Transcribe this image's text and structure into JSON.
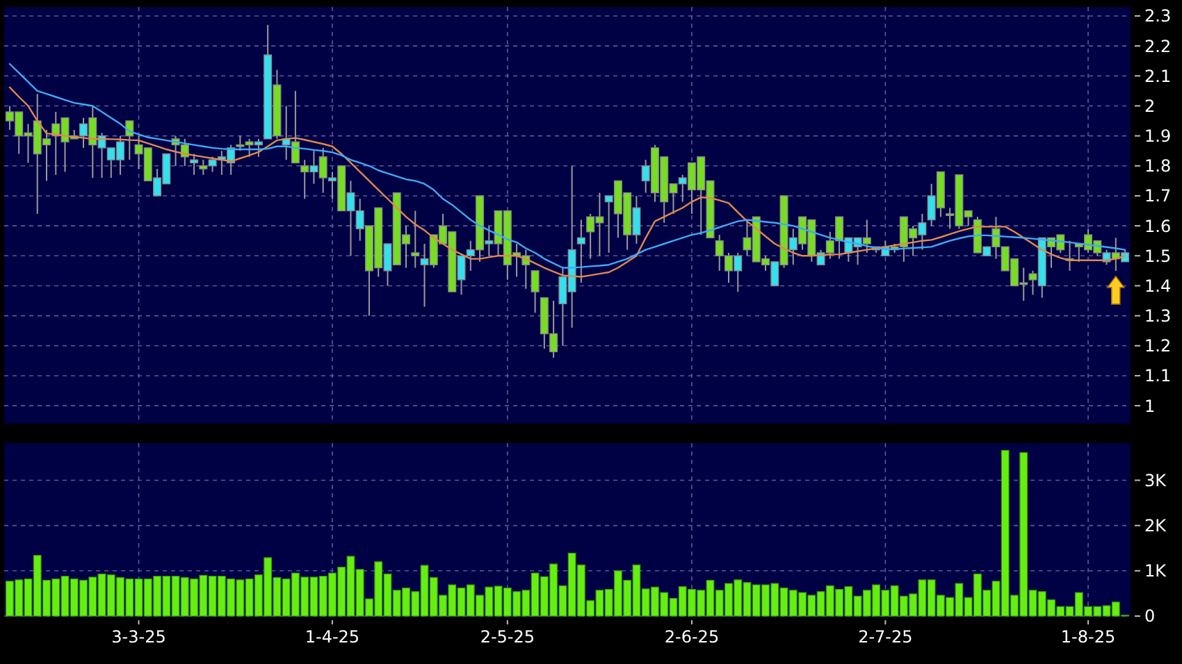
{
  "chart_data": [
    {
      "type": "candlestick",
      "categories": [
        null,
        null,
        null,
        null,
        null,
        null,
        null,
        null,
        null,
        null,
        null,
        null,
        null,
        null,
        null,
        null,
        null,
        null,
        null,
        null,
        null,
        null,
        null,
        null,
        null,
        null,
        null,
        null,
        null,
        null,
        null,
        null,
        null,
        null,
        null,
        null,
        null,
        null,
        null,
        null,
        null,
        null,
        null,
        null,
        null,
        null,
        null,
        null,
        null,
        null,
        null,
        null,
        null,
        null,
        null,
        null,
        null,
        null,
        null,
        null,
        null,
        null,
        null,
        null,
        null,
        null,
        null,
        null,
        null,
        null,
        null,
        null,
        null,
        null,
        null,
        null,
        null,
        null,
        null,
        null,
        null,
        null,
        null,
        null,
        null,
        null,
        null,
        null,
        null,
        null,
        null,
        null,
        null,
        null,
        null,
        null,
        null,
        null,
        null,
        null,
        null,
        null,
        null,
        null,
        null,
        null,
        null,
        null,
        null,
        null,
        null,
        null,
        null,
        null,
        null,
        null,
        null,
        null,
        null,
        null,
        null,
        null
      ],
      "series": [
        {
          "ohlc": [
            [
              1.98,
              2.0,
              1.92,
              1.95
            ],
            [
              1.98,
              1.98,
              1.84,
              1.9
            ],
            [
              1.91,
              1.94,
              1.81,
              1.9
            ],
            [
              1.95,
              2.04,
              1.64,
              1.84
            ],
            [
              1.89,
              1.92,
              1.75,
              1.87
            ],
            [
              1.94,
              1.98,
              1.77,
              1.9
            ],
            [
              1.96,
              1.96,
              1.78,
              1.88
            ],
            [
              1.9,
              1.92,
              1.89,
              1.89
            ],
            [
              1.9,
              1.96,
              1.86,
              1.94
            ],
            [
              1.96,
              2.0,
              1.76,
              1.87
            ],
            [
              1.86,
              1.91,
              1.76,
              1.9
            ],
            [
              1.82,
              1.86,
              1.76,
              1.86
            ],
            [
              1.82,
              1.9,
              1.77,
              1.88
            ],
            [
              1.95,
              1.95,
              1.82,
              1.9
            ],
            [
              1.87,
              1.9,
              1.79,
              1.84
            ],
            [
              1.86,
              1.86,
              1.75,
              1.75
            ],
            [
              1.7,
              1.79,
              1.7,
              1.76
            ],
            [
              1.74,
              1.84,
              1.74,
              1.84
            ],
            [
              1.89,
              1.9,
              1.8,
              1.87
            ],
            [
              1.87,
              1.89,
              1.8,
              1.83
            ],
            [
              1.81,
              1.84,
              1.77,
              1.82
            ],
            [
              1.8,
              1.82,
              1.77,
              1.79
            ],
            [
              1.8,
              1.83,
              1.78,
              1.82
            ],
            [
              1.82,
              1.85,
              1.77,
              1.83
            ],
            [
              1.81,
              1.87,
              1.77,
              1.86
            ],
            [
              1.87,
              1.9,
              1.85,
              1.87
            ],
            [
              1.88,
              1.89,
              1.83,
              1.87
            ],
            [
              1.87,
              1.89,
              1.83,
              1.88
            ],
            [
              1.89,
              2.27,
              1.89,
              2.17
            ],
            [
              2.07,
              2.12,
              1.89,
              1.9
            ],
            [
              1.87,
              2.0,
              1.82,
              1.89
            ],
            [
              1.88,
              2.05,
              1.81,
              1.81
            ],
            [
              1.8,
              1.82,
              1.69,
              1.78
            ],
            [
              1.78,
              1.85,
              1.74,
              1.8
            ],
            [
              1.83,
              1.86,
              1.71,
              1.76
            ],
            [
              1.75,
              1.78,
              1.69,
              1.76
            ],
            [
              1.8,
              1.8,
              1.65,
              1.65
            ],
            [
              1.65,
              1.75,
              1.5,
              1.71
            ],
            [
              1.59,
              1.69,
              1.55,
              1.65
            ],
            [
              1.6,
              1.6,
              1.3,
              1.45
            ],
            [
              1.66,
              1.66,
              1.43,
              1.46
            ],
            [
              1.45,
              1.54,
              1.4,
              1.54
            ],
            [
              1.71,
              1.71,
              1.47,
              1.47
            ],
            [
              1.57,
              1.6,
              1.46,
              1.54
            ],
            [
              1.51,
              1.65,
              1.46,
              1.5
            ],
            [
              1.47,
              1.54,
              1.33,
              1.49
            ],
            [
              1.57,
              1.57,
              1.46,
              1.47
            ],
            [
              1.6,
              1.64,
              1.54,
              1.54
            ],
            [
              1.58,
              1.58,
              1.38,
              1.38
            ],
            [
              1.42,
              1.5,
              1.37,
              1.5
            ],
            [
              1.5,
              1.55,
              1.45,
              1.52
            ],
            [
              1.7,
              1.7,
              1.48,
              1.52
            ],
            [
              1.54,
              1.6,
              1.5,
              1.55
            ],
            [
              1.65,
              1.65,
              1.5,
              1.54
            ],
            [
              1.65,
              1.65,
              1.42,
              1.47
            ],
            [
              1.51,
              1.54,
              1.43,
              1.5
            ],
            [
              1.5,
              1.52,
              1.39,
              1.47
            ],
            [
              1.45,
              1.45,
              1.31,
              1.38
            ],
            [
              1.36,
              1.36,
              1.19,
              1.24
            ],
            [
              1.24,
              1.35,
              1.16,
              1.18
            ],
            [
              1.34,
              1.46,
              1.2,
              1.43
            ],
            [
              1.38,
              1.8,
              1.26,
              1.52
            ],
            [
              1.54,
              1.62,
              1.41,
              1.56
            ],
            [
              1.63,
              1.64,
              1.49,
              1.58
            ],
            [
              1.63,
              1.71,
              1.5,
              1.61
            ],
            [
              1.68,
              1.7,
              1.51,
              1.7
            ],
            [
              1.75,
              1.75,
              1.56,
              1.64
            ],
            [
              1.71,
              1.71,
              1.52,
              1.57
            ],
            [
              1.57,
              1.7,
              1.54,
              1.66
            ],
            [
              1.75,
              1.82,
              1.71,
              1.8
            ],
            [
              1.86,
              1.87,
              1.68,
              1.71
            ],
            [
              1.83,
              1.83,
              1.61,
              1.68
            ],
            [
              1.74,
              1.74,
              1.64,
              1.71
            ],
            [
              1.74,
              1.77,
              1.68,
              1.76
            ],
            [
              1.81,
              1.81,
              1.64,
              1.72
            ],
            [
              1.83,
              1.83,
              1.57,
              1.72
            ],
            [
              1.75,
              1.75,
              1.56,
              1.56
            ],
            [
              1.55,
              1.57,
              1.45,
              1.5
            ],
            [
              1.5,
              1.51,
              1.41,
              1.45
            ],
            [
              1.45,
              1.51,
              1.38,
              1.5
            ],
            [
              1.56,
              1.62,
              1.5,
              1.52
            ],
            [
              1.63,
              1.63,
              1.48,
              1.48
            ],
            [
              1.49,
              1.5,
              1.45,
              1.47
            ],
            [
              1.4,
              1.48,
              1.4,
              1.48
            ],
            [
              1.7,
              1.7,
              1.46,
              1.47
            ],
            [
              1.52,
              1.59,
              1.47,
              1.56
            ],
            [
              1.63,
              1.63,
              1.52,
              1.54
            ],
            [
              1.62,
              1.62,
              1.48,
              1.5
            ],
            [
              1.47,
              1.52,
              1.47,
              1.51
            ],
            [
              1.55,
              1.58,
              1.49,
              1.51
            ],
            [
              1.63,
              1.63,
              1.49,
              1.55
            ],
            [
              1.51,
              1.56,
              1.48,
              1.56
            ],
            [
              1.53,
              1.56,
              1.47,
              1.56
            ],
            [
              1.56,
              1.62,
              1.51,
              1.54
            ],
            [
              1.53,
              1.53,
              1.51,
              1.52
            ],
            [
              1.5,
              1.55,
              1.5,
              1.53
            ],
            [
              1.53,
              1.54,
              1.51,
              1.52
            ],
            [
              1.63,
              1.63,
              1.48,
              1.53
            ],
            [
              1.59,
              1.6,
              1.5,
              1.56
            ],
            [
              1.57,
              1.64,
              1.52,
              1.61
            ],
            [
              1.62,
              1.74,
              1.6,
              1.7
            ],
            [
              1.78,
              1.78,
              1.63,
              1.66
            ],
            [
              1.64,
              1.66,
              1.59,
              1.64
            ],
            [
              1.77,
              1.77,
              1.59,
              1.6
            ],
            [
              1.65,
              1.65,
              1.6,
              1.63
            ],
            [
              1.62,
              1.63,
              1.51,
              1.51
            ],
            [
              1.5,
              1.53,
              1.5,
              1.53
            ],
            [
              1.59,
              1.63,
              1.49,
              1.53
            ],
            [
              1.53,
              1.53,
              1.45,
              1.45
            ],
            [
              1.49,
              1.49,
              1.4,
              1.4
            ],
            [
              1.41,
              1.46,
              1.35,
              1.41
            ],
            [
              1.44,
              1.45,
              1.37,
              1.42
            ],
            [
              1.4,
              1.56,
              1.36,
              1.56
            ],
            [
              1.56,
              1.56,
              1.46,
              1.53
            ],
            [
              1.57,
              1.57,
              1.51,
              1.52
            ],
            [
              1.49,
              1.55,
              1.45,
              1.49
            ],
            [
              1.54,
              1.54,
              1.48,
              1.53
            ],
            [
              1.57,
              1.59,
              1.51,
              1.52
            ],
            [
              1.55,
              1.55,
              1.5,
              1.51
            ],
            [
              1.48,
              1.52,
              1.47,
              1.51
            ],
            [
              1.51,
              1.56,
              1.45,
              1.49
            ],
            [
              1.48,
              1.52,
              1.48,
              1.51
            ]
          ],
          "colors": [
            "#77dd22",
            "#77dd22",
            "#77dd22",
            "#77dd22",
            "#77dd22",
            "#77dd22",
            "#77dd22",
            "#77dd22",
            "#33e0ee",
            "#77dd22",
            "#33e0ee",
            "#33e0ee",
            "#33e0ee",
            "#77dd22",
            "#77dd22",
            "#77dd22",
            "#33e0ee",
            "#33e0ee",
            "#77dd22",
            "#77dd22",
            "#33e0ee",
            "#77dd22",
            "#33e0ee",
            "#33e0ee",
            "#33e0ee",
            "#77dd22",
            "#77dd22",
            "#33e0ee",
            "#33e0ee",
            "#77dd22",
            "#33e0ee",
            "#77dd22",
            "#77dd22",
            "#33e0ee",
            "#77dd22",
            "#33e0ee",
            "#77dd22",
            "#33e0ee",
            "#33e0ee",
            "#77dd22",
            "#77dd22",
            "#33e0ee",
            "#77dd22",
            "#77dd22",
            "#77dd22",
            "#33e0ee",
            "#77dd22",
            "#77dd22",
            "#77dd22",
            "#33e0ee",
            "#33e0ee",
            "#77dd22",
            "#33e0ee",
            "#77dd22",
            "#77dd22",
            "#77dd22",
            "#77dd22",
            "#77dd22",
            "#77dd22",
            "#77dd22",
            "#33e0ee",
            "#33e0ee",
            "#33e0ee",
            "#77dd22",
            "#77dd22",
            "#33e0ee",
            "#77dd22",
            "#77dd22",
            "#33e0ee",
            "#33e0ee",
            "#77dd22",
            "#77dd22",
            "#77dd22",
            "#33e0ee",
            "#77dd22",
            "#77dd22",
            "#77dd22",
            "#77dd22",
            "#77dd22",
            "#33e0ee",
            "#77dd22",
            "#77dd22",
            "#77dd22",
            "#33e0ee",
            "#77dd22",
            "#33e0ee",
            "#77dd22",
            "#77dd22",
            "#33e0ee",
            "#77dd22",
            "#77dd22",
            "#33e0ee",
            "#33e0ee",
            "#77dd22",
            "#77dd22",
            "#33e0ee",
            "#77dd22",
            "#77dd22",
            "#77dd22",
            "#33e0ee",
            "#33e0ee",
            "#77dd22",
            "#77dd22",
            "#77dd22",
            "#77dd22",
            "#77dd22",
            "#33e0ee",
            "#77dd22",
            "#77dd22",
            "#77dd22",
            "#77dd22",
            "#77dd22",
            "#33e0ee",
            "#77dd22",
            "#77dd22",
            "#77dd22",
            "#77dd22",
            "#77dd22",
            "#77dd22",
            "#33e0ee",
            "#77dd22",
            "#33e0ee"
          ]
        },
        {
          "type": "line",
          "color": "#e0884e",
          "values": [
            2.062,
            2.03,
            2.0,
            1.95,
            1.908,
            1.905,
            1.9,
            1.897,
            1.893,
            1.89,
            1.89,
            1.889,
            1.888,
            1.886,
            1.885,
            1.875,
            1.865,
            1.855,
            1.847,
            1.84,
            1.835,
            1.83,
            1.825,
            1.82,
            1.815,
            1.825,
            1.835,
            1.846,
            1.865,
            1.885,
            1.89,
            1.893,
            1.887,
            1.88,
            1.873,
            1.865,
            1.84,
            1.81,
            1.78,
            1.75,
            1.72,
            1.69,
            1.66,
            1.63,
            1.605,
            1.585,
            1.56,
            1.54,
            1.52,
            1.505,
            1.49,
            1.49,
            1.495,
            1.5,
            1.5,
            1.5,
            1.49,
            1.475,
            1.46,
            1.447,
            1.435,
            1.432,
            1.43,
            1.435,
            1.44,
            1.445,
            1.46,
            1.48,
            1.5,
            1.56,
            1.615,
            1.63,
            1.645,
            1.66,
            1.68,
            1.695,
            1.693,
            1.685,
            1.676,
            1.645,
            1.615,
            1.59,
            1.565,
            1.54,
            1.525,
            1.51,
            1.5,
            1.5,
            1.502,
            1.504,
            1.505,
            1.51,
            1.515,
            1.52,
            1.525,
            1.53,
            1.535,
            1.54,
            1.545,
            1.55,
            1.553,
            1.562,
            1.572,
            1.582,
            1.59,
            1.597,
            1.597,
            1.597,
            1.597,
            1.58,
            1.56,
            1.54,
            1.52,
            1.505,
            1.493,
            1.485,
            1.485,
            1.485,
            1.485,
            1.485,
            1.49,
            1.5
          ]
        },
        {
          "type": "line",
          "color": "#3fa9f5",
          "values": [
            2.14,
            2.11,
            2.08,
            2.05,
            2.04,
            2.03,
            2.02,
            2.01,
            2.005,
            2.0,
            1.98,
            1.96,
            1.94,
            1.915,
            1.905,
            1.895,
            1.89,
            1.885,
            1.88,
            1.875,
            1.87,
            1.865,
            1.86,
            1.857,
            1.855,
            1.855,
            1.855,
            1.855,
            1.857,
            1.865,
            1.865,
            1.86,
            1.857,
            1.853,
            1.85,
            1.845,
            1.835,
            1.82,
            1.81,
            1.8,
            1.785,
            1.775,
            1.765,
            1.755,
            1.75,
            1.74,
            1.72,
            1.69,
            1.67,
            1.645,
            1.62,
            1.6,
            1.585,
            1.57,
            1.555,
            1.545,
            1.525,
            1.51,
            1.49,
            1.475,
            1.46,
            1.46,
            1.462,
            1.465,
            1.467,
            1.47,
            1.48,
            1.49,
            1.505,
            1.52,
            1.53,
            1.54,
            1.55,
            1.56,
            1.57,
            1.576,
            1.585,
            1.595,
            1.605,
            1.615,
            1.62,
            1.617,
            1.613,
            1.61,
            1.605,
            1.6,
            1.59,
            1.58,
            1.57,
            1.56,
            1.553,
            1.545,
            1.54,
            1.532,
            1.527,
            1.522,
            1.522,
            1.524,
            1.526,
            1.528,
            1.53,
            1.54,
            1.55,
            1.558,
            1.565,
            1.568,
            1.568,
            1.566,
            1.564,
            1.562,
            1.56,
            1.557,
            1.554,
            1.551,
            1.548,
            1.545,
            1.541,
            1.537,
            1.533,
            1.529,
            1.525,
            1.52
          ]
        }
      ],
      "ylim": [
        0.94,
        2.33
      ],
      "yticks": [
        1,
        1.1,
        1.2,
        1.3,
        1.4,
        1.5,
        1.6,
        1.7,
        1.8,
        1.9,
        2,
        2.1,
        2.2,
        2.3
      ],
      "grid": true,
      "tick_labels": "y"
    },
    {
      "type": "bar",
      "categories": [
        null,
        null,
        null,
        null,
        null,
        null,
        null,
        null,
        null,
        null,
        null,
        null,
        null,
        null,
        "3-3-25",
        null,
        null,
        null,
        null,
        null,
        null,
        null,
        null,
        null,
        null,
        null,
        null,
        null,
        null,
        null,
        null,
        null,
        null,
        null,
        null,
        "1-4-25",
        null,
        null,
        null,
        null,
        null,
        null,
        null,
        null,
        null,
        null,
        null,
        null,
        null,
        null,
        null,
        null,
        null,
        null,
        "2-5-25",
        null,
        null,
        null,
        null,
        null,
        null,
        null,
        null,
        null,
        null,
        null,
        null,
        null,
        null,
        null,
        null,
        null,
        null,
        null,
        "2-6-25",
        null,
        null,
        null,
        null,
        null,
        null,
        null,
        null,
        null,
        null,
        null,
        null,
        null,
        null,
        null,
        null,
        null,
        null,
        null,
        null,
        "2-7-25",
        null,
        null,
        null,
        null,
        null,
        null,
        null,
        null,
        null,
        null,
        null,
        null,
        null,
        null,
        null,
        null,
        null,
        null,
        null,
        null,
        null,
        "1-8-25",
        null,
        null,
        null,
        null
      ],
      "color": "#66ee11",
      "values": [
        770,
        800,
        820,
        1340,
        790,
        820,
        880,
        820,
        790,
        860,
        930,
        910,
        850,
        820,
        820,
        820,
        880,
        880,
        880,
        850,
        820,
        900,
        880,
        880,
        820,
        800,
        820,
        910,
        1290,
        850,
        820,
        950,
        860,
        860,
        880,
        950,
        1080,
        1320,
        1030,
        380,
        1200,
        930,
        570,
        620,
        540,
        1120,
        850,
        460,
        690,
        620,
        690,
        460,
        640,
        660,
        620,
        540,
        570,
        950,
        870,
        1150,
        670,
        1390,
        1130,
        340,
        570,
        590,
        1000,
        790,
        1130,
        600,
        640,
        520,
        390,
        650,
        590,
        570,
        790,
        570,
        720,
        800,
        740,
        690,
        690,
        720,
        620,
        570,
        520,
        460,
        540,
        670,
        590,
        650,
        440,
        570,
        690,
        570,
        670,
        440,
        490,
        800,
        800,
        460,
        410,
        720,
        410,
        930,
        570,
        770,
        3660,
        460,
        3610,
        570,
        540,
        360,
        210,
        210,
        520,
        210,
        210,
        230,
        310,
        20
      ],
      "ylim": [
        0,
        3820
      ],
      "yticks": [
        0,
        {
          "value": 1000,
          "label": "1K"
        },
        {
          "value": 2000,
          "label": "2K"
        },
        {
          "value": 3000,
          "label": "3K"
        }
      ],
      "grid": true
    }
  ]
}
